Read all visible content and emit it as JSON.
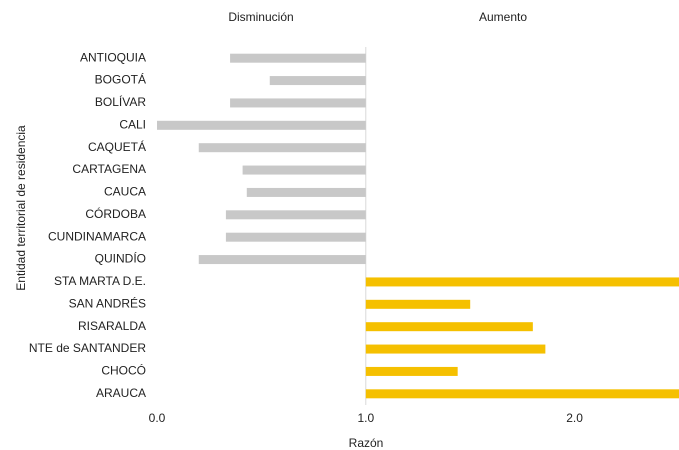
{
  "chart_data": {
    "type": "bar",
    "orientation": "horizontal",
    "x_label": "Razón",
    "y_label": "Entidad territorial de residencia",
    "categories": [
      "ANTIOQUIA",
      "BOGOTÁ",
      "BOLÍVAR",
      "CALI",
      "CAQUETÁ",
      "CARTAGENA",
      "CAUCA",
      "CÓRDOBA",
      "CUNDINAMARCA",
      "QUINDÍO",
      "STA MARTA D.E.",
      "SAN ANDRÉS",
      "RISARALDA",
      "NTE de SANTANDER",
      "CHOCÓ",
      "ARAUCA"
    ],
    "series": [
      {
        "name": "Disminución",
        "color": "#c8c8c8",
        "values": [
          0.35,
          0.54,
          0.35,
          0.0,
          0.2,
          0.41,
          0.43,
          0.33,
          0.33,
          0.2,
          null,
          null,
          null,
          null,
          null,
          null
        ]
      },
      {
        "name": "Aumento",
        "color": "#f5c000",
        "values": [
          null,
          null,
          null,
          null,
          null,
          null,
          null,
          null,
          null,
          null,
          2.5,
          1.5,
          1.8,
          1.86,
          1.44,
          2.5
        ]
      }
    ],
    "base": 1,
    "xlim": [
      0,
      2.5
    ],
    "xticks": [
      {
        "value": 0,
        "label": "0.0"
      },
      {
        "value": 1,
        "label": "1.0"
      },
      {
        "value": 2,
        "label": "2.0"
      }
    ]
  }
}
